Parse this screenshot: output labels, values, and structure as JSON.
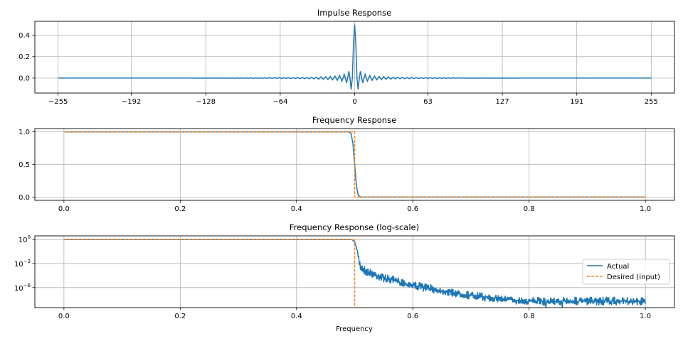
{
  "chart_data": [
    {
      "type": "line",
      "title": "Impulse Response",
      "xlabel": "",
      "ylabel": "",
      "grid": true,
      "xlim": [
        -275,
        275
      ],
      "ylim": [
        -0.14,
        0.53
      ],
      "xticks": [
        -255,
        -192,
        -128,
        -64,
        0,
        63,
        127,
        191,
        255
      ],
      "xtick_labels": [
        "−255",
        "−192",
        "−128",
        "−64",
        "0",
        "63",
        "127",
        "191",
        "255"
      ],
      "yticks": [
        0.0,
        0.2,
        0.4
      ],
      "ytick_labels": [
        "0.0",
        "0.2",
        "0.4"
      ],
      "x_range": [
        -255,
        255
      ],
      "nonzero_samples": {
        "n": [
          -31,
          -29,
          -27,
          -25,
          -23,
          -21,
          -19,
          -17,
          -15,
          -13,
          -11,
          -9,
          -7,
          -5,
          -3,
          -1,
          0,
          1,
          3,
          5,
          7,
          9,
          11,
          13,
          15,
          17,
          19,
          21,
          23,
          25,
          27,
          29,
          31
        ],
        "h": [
          -0.0103,
          0.011,
          -0.0118,
          0.0127,
          -0.0138,
          0.0152,
          -0.0168,
          0.0187,
          -0.0212,
          0.0245,
          -0.0289,
          0.0354,
          -0.0455,
          0.0637,
          -0.1061,
          0.3183,
          0.5,
          0.3183,
          -0.1061,
          0.0637,
          -0.0455,
          0.0354,
          -0.0289,
          0.0245,
          -0.0212,
          0.0187,
          -0.0168,
          0.0152,
          -0.0138,
          0.0127,
          -0.0118,
          0.011,
          -0.0103
        ]
      },
      "series": [
        {
          "values_note_color": "#1f77b4"
        }
      ]
    },
    {
      "type": "line",
      "title": "Frequency Response",
      "xlabel": "",
      "ylabel": "",
      "grid": true,
      "xlim": [
        -0.05,
        1.05
      ],
      "ylim": [
        -0.05,
        1.05
      ],
      "xticks": [
        0.0,
        0.2,
        0.4,
        0.6,
        0.8,
        1.0
      ],
      "xtick_labels": [
        "0.0",
        "0.2",
        "0.4",
        "0.6",
        "0.8",
        "1.0"
      ],
      "yticks": [
        0.0,
        0.5,
        1.0
      ],
      "ytick_labels": [
        "0.0",
        "0.5",
        "1.0"
      ],
      "series": [
        {
          "name": "Actual",
          "color": "#1f77b4",
          "style": "solid",
          "x": [
            0,
            0.49,
            0.494,
            0.497,
            0.5,
            0.503,
            0.506,
            0.51,
            1.0
          ],
          "y": [
            1,
            1,
            0.97,
            0.82,
            0.5,
            0.18,
            0.03,
            0.0,
            0.0
          ]
        },
        {
          "name": "Desired (input)",
          "color": "#ff7f0e",
          "style": "dashed",
          "x": [
            0,
            0.5,
            0.5,
            1.0
          ],
          "y": [
            1,
            1,
            0,
            0
          ]
        }
      ]
    },
    {
      "type": "line",
      "title": "Frequency Response (log-scale)",
      "xlabel": "Frequency",
      "ylabel": "",
      "yscale": "log",
      "grid": true,
      "legend": "center-right",
      "xlim": [
        -0.05,
        1.05
      ],
      "ylim_log10": [
        -8.5,
        0.45
      ],
      "xticks": [
        0.0,
        0.2,
        0.4,
        0.6,
        0.8,
        1.0
      ],
      "xtick_labels": [
        "0.0",
        "0.2",
        "0.4",
        "0.6",
        "0.8",
        "1.0"
      ],
      "yticks_log10": [
        0,
        -3,
        -6
      ],
      "ytick_labels": [
        {
          "base": "10",
          "exp": "0"
        },
        {
          "base": "10",
          "exp": "−3"
        },
        {
          "base": "10",
          "exp": "−6"
        }
      ],
      "series": [
        {
          "name": "Actual",
          "color": "#1f77b4",
          "style": "solid",
          "x": [
            0,
            0.495,
            0.5,
            0.505,
            0.51,
            0.52,
            0.55,
            0.6,
            0.65,
            0.7,
            0.75,
            0.8,
            0.9,
            1.0
          ],
          "y_log10": [
            0,
            0,
            -0.3,
            -1.5,
            -3.0,
            -3.6,
            -4.4,
            -5.3,
            -6.0,
            -6.6,
            -7.0,
            -7.3,
            -7.3,
            -7.3
          ]
        },
        {
          "name": "Desired (input)",
          "color": "#ff7f0e",
          "style": "dashed",
          "x": [
            0,
            0.5,
            0.5
          ],
          "y_log10": [
            0,
            0,
            -8.5
          ]
        }
      ]
    }
  ]
}
